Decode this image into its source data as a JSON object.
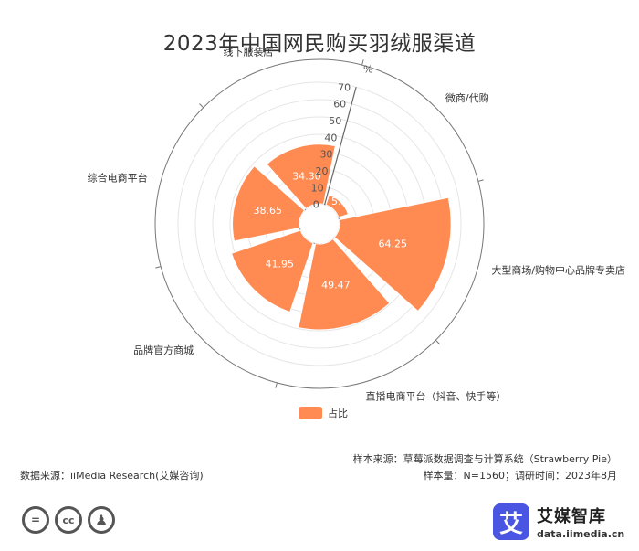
{
  "header": {
    "title": "2023年中国网民购买羽绒服渠道"
  },
  "colors": {
    "bar": "#ff8b52",
    "grid": "#e6e6e6",
    "axis": "#666666"
  },
  "chart_data": {
    "type": "polar-bar",
    "title": "2023年中国网民购买羽绒服渠道",
    "categories": [
      "微商/代购",
      "大型商场/购物中心品牌专卖店",
      "直播电商平台（抖音、快手等）",
      "品牌官方商城",
      "综合电商平台",
      "线下服装店"
    ],
    "values": [
      5.94,
      64.25,
      49.47,
      41.95,
      38.65,
      34.3
    ],
    "value_labels": [
      "5.94",
      "64.25",
      "49.47",
      "41.95",
      "38.65",
      "34.30"
    ],
    "radial_ticks": [
      "0",
      "10",
      "20",
      "30",
      "40",
      "50",
      "60",
      "70"
    ],
    "unit": "%",
    "rlim": [
      0,
      70
    ],
    "legend": "占比",
    "legend_position": "bottom-center",
    "grid": true
  },
  "legend": {
    "label": "占比"
  },
  "footer": {
    "data_source": "数据来源：iiMedia Research(艾媒咨询)",
    "sample_source": "样本来源：草莓派数据调查与计算系统（Strawberry Pie）",
    "sample_info": "样本量：N=1560；调研时间：2023年8月"
  },
  "license_icons": [
    "=",
    "cc",
    "person-icon"
  ],
  "brand": {
    "mark": "艾",
    "name": "艾媒智库",
    "url": "data.iimedia.cn"
  }
}
